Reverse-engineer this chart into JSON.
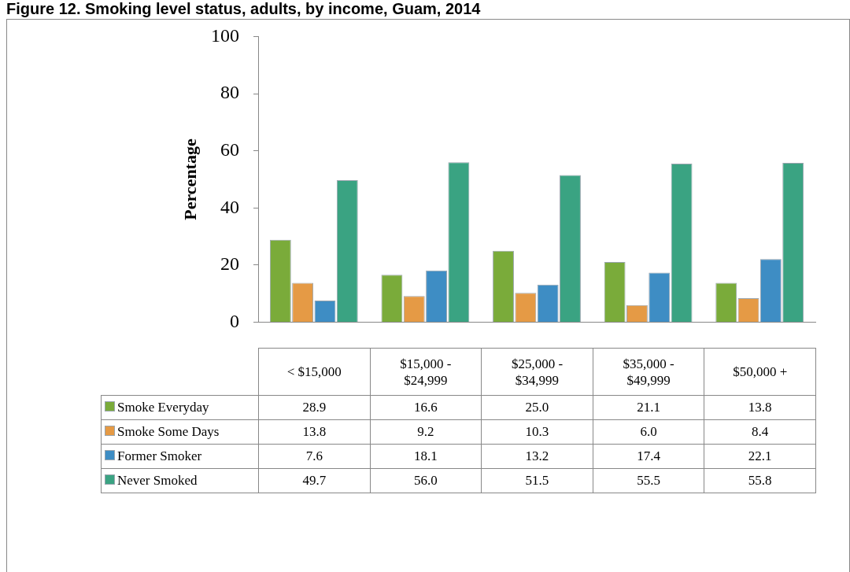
{
  "chart_data": {
    "type": "bar",
    "title": "Figure 12. Smoking level status, adults, by income, Guam, 2014",
    "ylabel": "Percentage",
    "categories": [
      "< $15,000",
      "$15,000 - $24,999",
      "$25,000 - $34,999",
      "$35,000 - $49,999",
      "$50,000 +"
    ],
    "series": [
      {
        "name": "Smoke Everyday",
        "color": "#7aab3a",
        "values": [
          28.9,
          16.6,
          25.0,
          21.1,
          13.8
        ],
        "value_labels": [
          "28.9",
          "16.6",
          "25.0",
          "21.1",
          "13.8"
        ]
      },
      {
        "name": "Smoke Some Days",
        "color": "#e59a45",
        "values": [
          13.8,
          9.2,
          10.3,
          6.0,
          8.4
        ],
        "value_labels": [
          "13.8",
          "9.2",
          "10.3",
          "6.0",
          "8.4"
        ]
      },
      {
        "name": "Former Smoker",
        "color": "#3e8dc4",
        "values": [
          7.6,
          18.1,
          13.2,
          17.4,
          22.1
        ],
        "value_labels": [
          "7.6",
          "18.1",
          "13.2",
          "17.4",
          "22.1"
        ]
      },
      {
        "name": "Never Smoked",
        "color": "#3aa382",
        "values": [
          49.7,
          56.0,
          51.5,
          55.5,
          55.8
        ],
        "value_labels": [
          "49.7",
          "56.0",
          "51.5",
          "55.5",
          "55.8"
        ]
      }
    ],
    "ylim": [
      0,
      100
    ],
    "yticks": [
      0,
      20,
      40,
      60,
      80,
      100
    ],
    "grid": false,
    "legend": "bottom",
    "tick_labels": "y"
  }
}
